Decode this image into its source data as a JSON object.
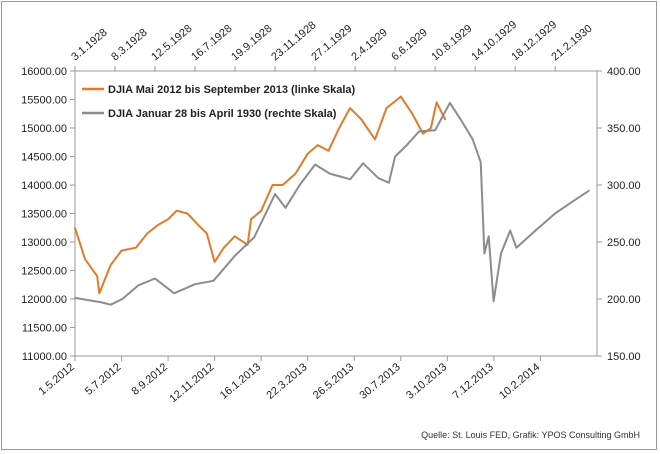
{
  "chart_data": {
    "type": "line",
    "title": "",
    "xlabel": "",
    "ylabel": "",
    "y_left": {
      "ticks": [
        "11000.00",
        "11500.00",
        "12000.00",
        "12500.00",
        "13000.00",
        "13500.00",
        "14000.00",
        "14500.00",
        "15000.00",
        "15500.00",
        "16000.00"
      ],
      "range": [
        11000,
        16000
      ]
    },
    "y_right": {
      "ticks": [
        "150.00",
        "200.00",
        "250.00",
        "300.00",
        "350.00",
        "400.00"
      ],
      "range": [
        150,
        400
      ]
    },
    "x_bottom": {
      "ticks": [
        "1.5.2012",
        "5.7.2012",
        "8.9.2012",
        "12.11.2012",
        "16.1.2013",
        "22.3.2013",
        "26.5.2013",
        "30.7.2013",
        "3.10.2013",
        "7.12.2013",
        "10.2.2014"
      ],
      "range": [
        "2012-05-01",
        "2014-04-30"
      ]
    },
    "x_top": {
      "ticks": [
        "3.1.1928",
        "8.3.1928",
        "12.5.1928",
        "16.7.1928",
        "19.9.1928",
        "23.11.1928",
        "27.1.1929",
        "2.4.1929",
        "6.6.1929",
        "10.8.1929",
        "14.10.1929",
        "18.12.1929",
        "21.2.1930"
      ],
      "range": [
        "1928-01-03",
        "1930-04-30"
      ]
    },
    "grid": false,
    "legend_position": "top-left",
    "series": [
      {
        "name": "DJIA Mai 2012 bis September 2013 (linke Skala)",
        "axis": "left",
        "color": "#e07b2a",
        "x": [
          "2012-05-01",
          "2012-05-15",
          "2012-06-01",
          "2012-06-04",
          "2012-06-20",
          "2012-07-05",
          "2012-07-25",
          "2012-08-10",
          "2012-08-25",
          "2012-09-08",
          "2012-09-20",
          "2012-10-05",
          "2012-10-20",
          "2012-11-01",
          "2012-11-12",
          "2012-11-25",
          "2012-12-10",
          "2012-12-28",
          "2013-01-02",
          "2013-01-16",
          "2013-02-01",
          "2013-02-15",
          "2013-03-05",
          "2013-03-22",
          "2013-04-05",
          "2013-04-20",
          "2013-05-05",
          "2013-05-20",
          "2013-06-05",
          "2013-06-24",
          "2013-07-10",
          "2013-07-30",
          "2013-08-15",
          "2013-08-30",
          "2013-09-10",
          "2013-09-18",
          "2013-09-30"
        ],
        "values": [
          13250,
          12700,
          12400,
          12100,
          12600,
          12850,
          12900,
          13150,
          13300,
          13400,
          13550,
          13500,
          13300,
          13150,
          12650,
          12900,
          13100,
          12950,
          13400,
          13550,
          14000,
          14000,
          14200,
          14550,
          14700,
          14600,
          15000,
          15350,
          15150,
          14800,
          15350,
          15550,
          15250,
          14900,
          15000,
          15450,
          15150
        ]
      },
      {
        "name": "DJIA Januar 28 bis April 1930 (rechte Skala)",
        "axis": "right",
        "color": "#8c8c8c",
        "x": [
          "1928-01-03",
          "1928-02-15",
          "1928-03-01",
          "1928-03-20",
          "1928-04-15",
          "1928-05-12",
          "1928-06-12",
          "1928-07-16",
          "1928-08-15",
          "1928-09-19",
          "1928-10-20",
          "1928-11-23",
          "1928-12-10",
          "1929-01-02",
          "1929-01-27",
          "1929-02-20",
          "1929-03-25",
          "1929-04-15",
          "1929-05-10",
          "1929-05-27",
          "1929-06-06",
          "1929-06-25",
          "1929-07-15",
          "1929-08-10",
          "1929-09-03",
          "1929-09-20",
          "1929-10-10",
          "1929-10-23",
          "1929-10-29",
          "1929-11-05",
          "1929-11-13",
          "1929-11-25",
          "1929-12-10",
          "1929-12-20",
          "1930-01-20",
          "1930-02-21",
          "1930-03-20",
          "1930-04-17"
        ],
        "values": [
          201,
          197,
          195,
          200,
          212,
          218,
          205,
          213,
          216,
          238,
          254,
          292,
          280,
          300,
          318,
          310,
          305,
          319,
          306,
          302,
          325,
          335,
          347,
          348,
          372,
          358,
          340,
          320,
          240,
          255,
          198,
          240,
          260,
          245,
          260,
          275,
          285,
          295
        ]
      }
    ],
    "annotation": "Quelle: St. Louis FED, Grafik: YPOS Consulting GmbH"
  }
}
